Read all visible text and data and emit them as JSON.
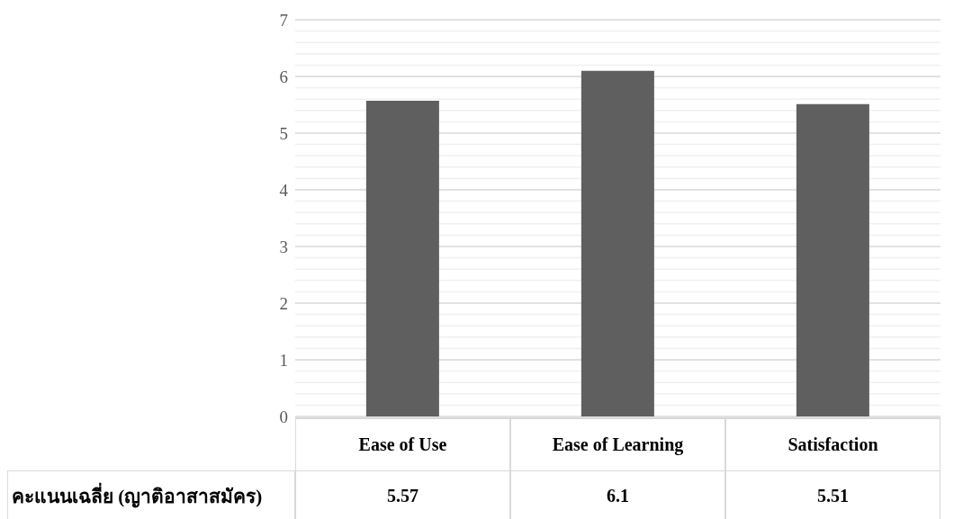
{
  "chart_data": {
    "type": "bar",
    "categories": [
      "Ease of Use",
      "Ease of Learning",
      "Satisfaction"
    ],
    "series": [
      {
        "name": "คะแนนเฉลี่ย (ญาติอาสาสมัคร)",
        "color": "#5f5f5f",
        "values": [
          5.57,
          6.1,
          5.51
        ]
      }
    ],
    "ylim": [
      0,
      7
    ],
    "yticks": [
      0,
      {
        "value": 0.2,
        "label": null
      },
      {
        "value": 0.4,
        "label": null
      },
      {
        "value": 0.6,
        "label": null
      },
      {
        "value": 0.8,
        "label": null
      },
      1,
      {
        "value": 1.2,
        "label": null
      },
      {
        "value": 1.4,
        "label": null
      },
      {
        "value": 1.6,
        "label": null
      },
      {
        "value": 1.8,
        "label": null
      },
      2,
      {
        "value": 2.2,
        "label": null
      },
      {
        "value": 2.4,
        "label": null
      },
      {
        "value": 2.6,
        "label": null
      },
      {
        "value": 2.8,
        "label": null
      },
      3,
      {
        "value": 3.2,
        "label": null
      },
      {
        "value": 3.4,
        "label": null
      },
      {
        "value": 3.6,
        "label": null
      },
      {
        "value": 3.8,
        "label": null
      },
      4,
      {
        "value": 4.2,
        "label": null
      },
      {
        "value": 4.4,
        "label": null
      },
      {
        "value": 4.6,
        "label": null
      },
      {
        "value": 4.8,
        "label": null
      },
      5,
      {
        "value": 5.2,
        "label": null
      },
      {
        "value": 5.4,
        "label": null
      },
      {
        "value": 5.6,
        "label": null
      },
      {
        "value": 5.8,
        "label": null
      },
      6,
      {
        "value": 6.2,
        "label": null
      },
      {
        "value": 6.4,
        "label": null
      },
      {
        "value": 6.6,
        "label": null
      },
      {
        "value": 6.8,
        "label": null
      },
      7
    ],
    "grid": "y",
    "data_labels": true,
    "legend": false
  }
}
